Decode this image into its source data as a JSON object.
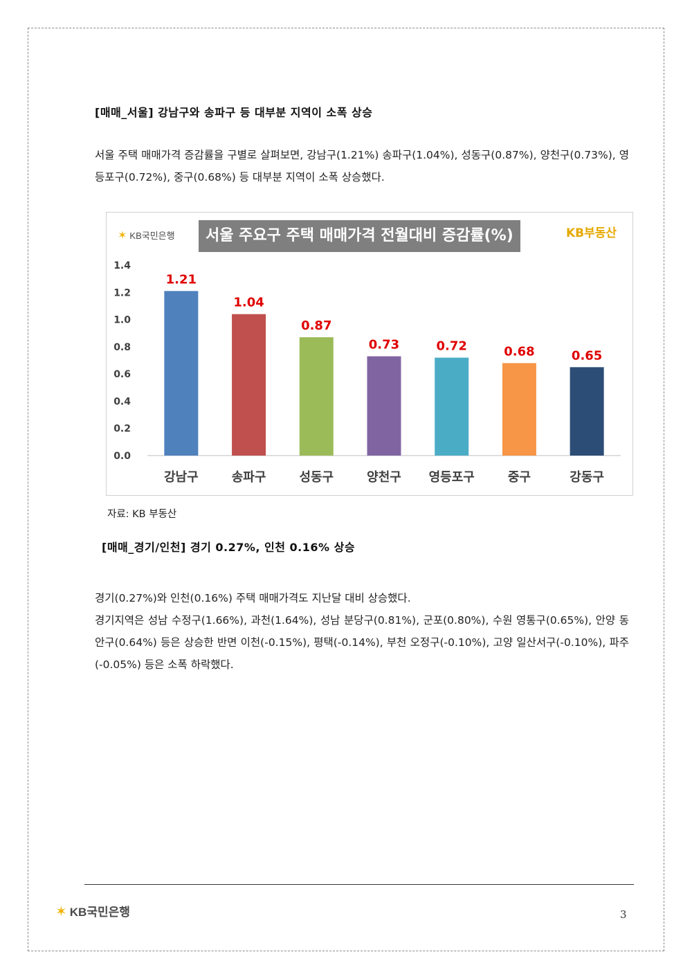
{
  "section1": {
    "heading": "[매매_서울] 강남구와 송파구 등 대부분 지역이 소폭 상승",
    "paragraph": "서울 주택 매매가격 증감률을 구별로 살펴보면, 강남구(1.21%) 송파구(1.04%), 성동구(0.87%), 양천구(0.73%), 영등포구(0.72%), 중구(0.68%) 등 대부분 지역이 소폭 상승했다."
  },
  "chart_header": {
    "logo_left": "KB국민은행",
    "brand_right": "KB부동산"
  },
  "chart_data": {
    "type": "bar",
    "title": "서울 주요구 주택 매매가격 전월대비 증감률(%)",
    "categories": [
      "강남구",
      "송파구",
      "성동구",
      "양천구",
      "영등포구",
      "중구",
      "강동구"
    ],
    "values": [
      1.21,
      1.04,
      0.87,
      0.73,
      0.72,
      0.68,
      0.65
    ],
    "value_labels": [
      "1.21",
      "1.04",
      "0.87",
      "0.73",
      "0.72",
      "0.68",
      "0.65"
    ],
    "colors": [
      "#4f81bd",
      "#c0504d",
      "#9bbb59",
      "#8064a2",
      "#4bacc6",
      "#f79646",
      "#2c4d75"
    ],
    "label_color": "#e00000",
    "ylim": [
      0,
      1.4
    ],
    "yticks": [
      "0.0",
      "0.2",
      "0.4",
      "0.6",
      "0.8",
      "1.0",
      "1.2",
      "1.4"
    ],
    "grid": false
  },
  "source_note": "자료: KB 부동산",
  "section2": {
    "heading": "[매매_경기/인천] 경기 0.27%, 인천 0.16% 상승",
    "line1": "경기(0.27%)와 인천(0.16%) 주택 매매가격도 지난달 대비 상승했다.",
    "line2": "경기지역은 성남 수정구(1.66%), 과천(1.64%), 성남 분당구(0.81%), 군포(0.80%), 수원 영통구(0.65%), 안양 동안구(0.64%) 등은 상승한 반면 이천(-0.15%), 평택(-0.14%), 부천 오정구(-0.10%), 고양 일산서구(-0.10%), 파주(-0.05%) 등은 소폭 하락했다."
  },
  "footer": {
    "logo": "KB국민은행",
    "page_number": "3"
  }
}
